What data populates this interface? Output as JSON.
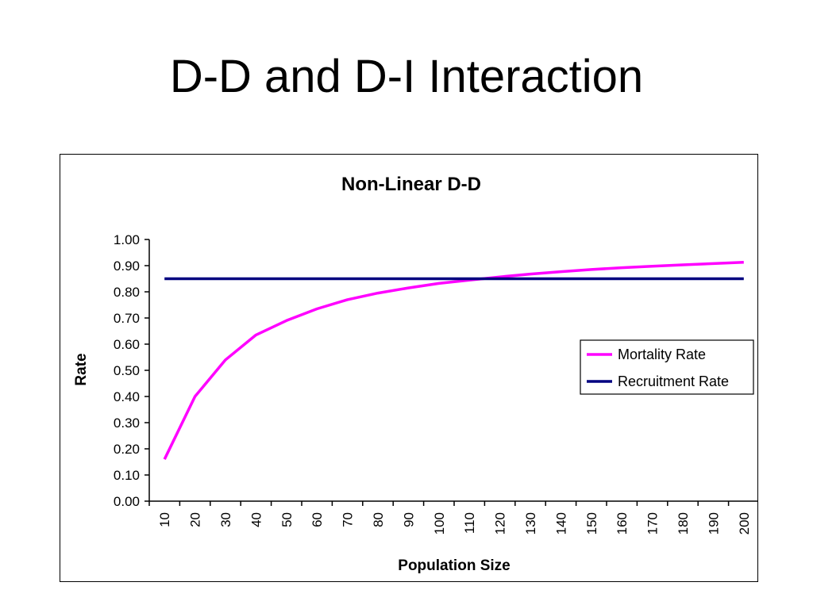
{
  "slide": {
    "title": "D-D and D-I Interaction"
  },
  "chart_data": {
    "type": "line",
    "title": "Non-Linear D-D",
    "xlabel": "Population Size",
    "ylabel": "Rate",
    "categories": [
      "10",
      "20",
      "30",
      "40",
      "50",
      "60",
      "70",
      "80",
      "90",
      "100",
      "110",
      "120",
      "130",
      "140",
      "150",
      "160",
      "170",
      "180",
      "190",
      "200"
    ],
    "ylim": [
      0,
      1
    ],
    "yticks": [
      "0.00",
      "0.10",
      "0.20",
      "0.30",
      "0.40",
      "0.50",
      "0.60",
      "0.70",
      "0.80",
      "0.90",
      "1.00"
    ],
    "grid": false,
    "legend_position": "right",
    "series": [
      {
        "name": "Mortality Rate",
        "color": "#ff00ff",
        "values": [
          0.16,
          0.4,
          0.54,
          0.635,
          0.69,
          0.735,
          0.77,
          0.795,
          0.815,
          0.832,
          0.845,
          0.857,
          0.868,
          0.877,
          0.885,
          0.892,
          0.898,
          0.903,
          0.908,
          0.913
        ]
      },
      {
        "name": "Recruitment Rate",
        "color": "#000080",
        "values": [
          0.85,
          0.85,
          0.85,
          0.85,
          0.85,
          0.85,
          0.85,
          0.85,
          0.85,
          0.85,
          0.85,
          0.85,
          0.85,
          0.85,
          0.85,
          0.85,
          0.85,
          0.85,
          0.85,
          0.85
        ]
      }
    ]
  }
}
